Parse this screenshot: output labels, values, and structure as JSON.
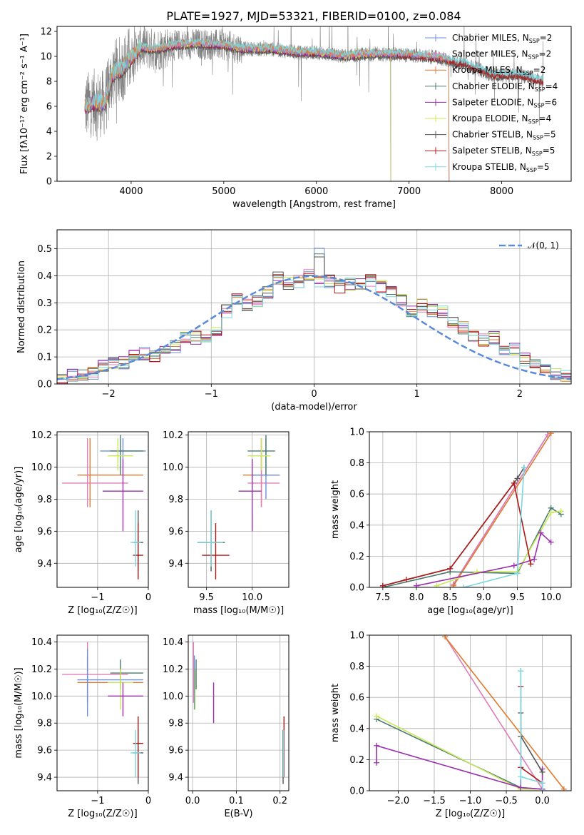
{
  "figure": {
    "title": "PLATE=1927, MJD=53321, FIBERID=0100, z=0.084",
    "colors": {
      "chabrier_miles": "#6a8fd8",
      "salpeter_miles": "#e07cb8",
      "kroupa_miles": "#e07a2e",
      "chabrier_elodie": "#4a7a6e",
      "salpeter_elodie": "#9b2fae",
      "kroupa_elodie": "#c8e85a",
      "chabrier_stelib": "#555555",
      "salpeter_stelib": "#b01818",
      "kroupa_stelib": "#7ad8e0",
      "data": "#808080",
      "normal": "#5b8bd8"
    }
  },
  "chart_data": [
    {
      "id": "spectrum",
      "type": "line",
      "xlabel": "wavelength [Angstrom, rest frame]",
      "ylabel": "Flux [fλ10⁻¹⁷ erg cm⁻² s⁻¹ A⁻¹]",
      "xlim": [
        3200,
        8750
      ],
      "ylim": [
        0,
        12.4
      ],
      "xticks": [
        4000,
        5000,
        6000,
        7000,
        8000
      ],
      "yticks": [
        0,
        2,
        4,
        6,
        8,
        10,
        12
      ],
      "continuum": {
        "x": [
          3500,
          3600,
          3700,
          3750,
          3800,
          3900,
          4000,
          4100,
          4200,
          4300,
          4400,
          4500,
          4700,
          5000,
          5200,
          5500,
          5800,
          6000,
          6300,
          6600,
          7000,
          7300,
          7600,
          7900,
          8200,
          8450
        ],
        "y": [
          6.0,
          6.3,
          6.2,
          7.0,
          8.6,
          9.0,
          9.9,
          10.7,
          10.6,
          10.6,
          10.8,
          10.9,
          11.0,
          10.9,
          10.6,
          10.6,
          10.3,
          10.3,
          10.0,
          10.2,
          10.1,
          9.9,
          9.4,
          8.5,
          8.5,
          8.0
        ]
      },
      "legend_position": "right",
      "legend": [
        {
          "label": "Chabrier MILES, N",
          "sub": "SSP",
          "n": "=2",
          "color": "chabrier_miles"
        },
        {
          "label": "Salpeter MILES, N",
          "sub": "SSP",
          "n": "=2",
          "color": "salpeter_miles"
        },
        {
          "label": "Kroupa MILES, N",
          "sub": "SSP",
          "n": "=2",
          "color": "kroupa_miles"
        },
        {
          "label": "Chabrier ELODIE, N",
          "sub": "SSP",
          "n": "=4",
          "color": "chabrier_elodie"
        },
        {
          "label": "Salpeter ELODIE, N",
          "sub": "SSP",
          "n": "=6",
          "color": "salpeter_elodie"
        },
        {
          "label": "Kroupa ELODIE, N",
          "sub": "SSP",
          "n": "=4",
          "color": "kroupa_elodie"
        },
        {
          "label": "Chabrier STELIB, N",
          "sub": "SSP",
          "n": "=5",
          "color": "chabrier_stelib"
        },
        {
          "label": "Salpeter STELIB, N",
          "sub": "SSP",
          "n": "=5",
          "color": "salpeter_stelib"
        },
        {
          "label": "Kroupa STELIB, N",
          "sub": "SSP",
          "n": "=5",
          "color": "kroupa_stelib"
        }
      ]
    },
    {
      "id": "residuals",
      "type": "line",
      "xlabel": "(data-model)/error",
      "ylabel": "Normed distribution",
      "xlim": [
        -2.5,
        2.5
      ],
      "ylim": [
        0,
        0.57
      ],
      "xticks": [
        -2,
        -1,
        0,
        1,
        2
      ],
      "yticks": [
        0.0,
        0.1,
        0.2,
        0.3,
        0.4,
        0.5
      ],
      "legend": "𝒩(0, 1)",
      "bins": [
        -2.5,
        -2.4,
        -2.3,
        -2.2,
        -2.1,
        -2.0,
        -1.9,
        -1.8,
        -1.7,
        -1.6,
        -1.5,
        -1.4,
        -1.3,
        -1.2,
        -1.1,
        -1.0,
        -0.9,
        -0.8,
        -0.7,
        -0.6,
        -0.5,
        -0.4,
        -0.3,
        -0.2,
        -0.1,
        0.0,
        0.1,
        0.2,
        0.3,
        0.4,
        0.5,
        0.6,
        0.7,
        0.8,
        0.9,
        1.0,
        1.1,
        1.2,
        1.3,
        1.4,
        1.5,
        1.6,
        1.7,
        1.8,
        1.9,
        2.0,
        2.1,
        2.2,
        2.3,
        2.4,
        2.5
      ],
      "base": [
        0.02,
        0.03,
        0.03,
        0.04,
        0.07,
        0.08,
        0.08,
        0.1,
        0.11,
        0.1,
        0.13,
        0.14,
        0.17,
        0.17,
        0.18,
        0.2,
        0.27,
        0.31,
        0.29,
        0.31,
        0.34,
        0.39,
        0.37,
        0.38,
        0.4,
        0.38,
        0.38,
        0.36,
        0.37,
        0.37,
        0.38,
        0.36,
        0.34,
        0.31,
        0.27,
        0.29,
        0.27,
        0.27,
        0.23,
        0.21,
        0.18,
        0.16,
        0.17,
        0.12,
        0.13,
        0.09,
        0.07,
        0.05,
        0.04,
        0.03
      ]
    },
    {
      "id": "age_vs_Z",
      "type": "scatter",
      "xlabel": "Z [log₁₀(Z/Z☉)]",
      "ylabel": "age  [log₁₀(age/yr)]",
      "xlim": [
        -1.8,
        0.0
      ],
      "ylim": [
        9.25,
        10.22
      ],
      "xticks": [
        -1,
        0
      ],
      "yticks": [
        9.4,
        9.6,
        9.8,
        10.0,
        10.2
      ],
      "points": [
        {
          "c": "kroupa_miles",
          "x": -1.15,
          "y": 9.95,
          "xe": [
            -1.4,
            -0.1
          ],
          "ye": [
            9.75,
            10.18
          ]
        },
        {
          "c": "salpeter_miles",
          "x": -1.2,
          "y": 9.9,
          "xe": [
            -1.7,
            -0.4
          ],
          "ye": [
            9.75,
            10.18
          ]
        },
        {
          "c": "chabrier_miles",
          "x": -0.5,
          "y": 10.1,
          "xe": [
            -0.95,
            -0.05
          ],
          "ye": [
            10.05,
            10.18
          ]
        },
        {
          "c": "chabrier_elodie",
          "x": -0.55,
          "y": 10.1,
          "xe": [
            -0.75,
            -0.1
          ],
          "ye": [
            9.95,
            10.2
          ]
        },
        {
          "c": "kroupa_elodie",
          "x": -0.6,
          "y": 10.07,
          "xe": [
            -0.8,
            -0.3
          ],
          "ye": [
            9.98,
            10.18
          ]
        },
        {
          "c": "salpeter_elodie",
          "x": -0.5,
          "y": 9.85,
          "xe": [
            -0.9,
            -0.1
          ],
          "ye": [
            9.6,
            10.05
          ]
        },
        {
          "c": "chabrier_stelib",
          "x": -0.2,
          "y": 9.53,
          "xe": [
            -0.3,
            -0.1
          ],
          "ye": [
            9.35,
            9.73
          ]
        },
        {
          "c": "salpeter_stelib",
          "x": -0.2,
          "y": 9.45,
          "xe": [
            -0.3,
            -0.1
          ],
          "ye": [
            9.3,
            9.65
          ]
        },
        {
          "c": "kroupa_stelib",
          "x": -0.25,
          "y": 9.53,
          "xe": [
            -0.35,
            -0.15
          ],
          "ye": [
            9.38,
            9.73
          ]
        }
      ]
    },
    {
      "id": "age_vs_mass",
      "type": "scatter",
      "xlabel": "mass [log₁₀(M/M☉)]",
      "ylabel": "",
      "xlim": [
        9.3,
        10.4
      ],
      "ylim": [
        9.25,
        10.22
      ],
      "xticks": [
        9.5,
        10.0
      ],
      "yticks": [
        9.4,
        9.6,
        9.8,
        10.0,
        10.2
      ],
      "points": [
        {
          "c": "kroupa_miles",
          "x": 10.1,
          "y": 9.95,
          "xe": [
            9.9,
            10.3
          ],
          "ye": [
            9.75,
            10.18
          ]
        },
        {
          "c": "salpeter_miles",
          "x": 10.1,
          "y": 9.9,
          "xe": [
            9.95,
            10.3
          ],
          "ye": [
            9.75,
            10.18
          ]
        },
        {
          "c": "chabrier_miles",
          "x": 10.15,
          "y": 9.95,
          "xe": [
            10.0,
            10.3
          ],
          "ye": [
            9.8,
            10.18
          ]
        },
        {
          "c": "chabrier_elodie",
          "x": 10.15,
          "y": 10.1,
          "xe": [
            9.95,
            10.25
          ],
          "ye": [
            9.95,
            10.2
          ]
        },
        {
          "c": "kroupa_elodie",
          "x": 10.1,
          "y": 10.07,
          "xe": [
            9.95,
            10.2
          ],
          "ye": [
            9.98,
            10.18
          ]
        },
        {
          "c": "salpeter_elodie",
          "x": 10.0,
          "y": 9.85,
          "xe": [
            9.85,
            10.1
          ],
          "ye": [
            9.6,
            10.05
          ]
        },
        {
          "c": "chabrier_stelib",
          "x": 9.55,
          "y": 9.53,
          "xe": [
            9.4,
            9.7
          ],
          "ye": [
            9.35,
            9.73
          ]
        },
        {
          "c": "salpeter_stelib",
          "x": 9.6,
          "y": 9.45,
          "xe": [
            9.45,
            9.75
          ],
          "ye": [
            9.3,
            9.65
          ]
        },
        {
          "c": "kroupa_stelib",
          "x": 9.55,
          "y": 9.53,
          "xe": [
            9.4,
            9.68
          ],
          "ye": [
            9.38,
            9.73
          ]
        }
      ]
    },
    {
      "id": "weight_vs_age",
      "type": "line",
      "xlabel": "age  [log₁₀(age/yr)]",
      "ylabel": "mass weight",
      "xlim": [
        7.3,
        10.3
      ],
      "ylim": [
        0,
        1
      ],
      "xticks": [
        7.5,
        8.0,
        8.5,
        9.0,
        9.5,
        10.0
      ],
      "yticks": [
        0.0,
        0.2,
        0.4,
        0.6,
        0.8,
        1.0
      ],
      "series": [
        {
          "c": "chabrier_miles",
          "x": [
            8.55,
            9.95
          ],
          "y": [
            0.02,
            0.98
          ]
        },
        {
          "c": "salpeter_miles",
          "x": [
            8.55,
            9.95
          ],
          "y": [
            0.02,
            0.98
          ]
        },
        {
          "c": "kroupa_miles",
          "x": [
            8.55,
            10.0
          ],
          "y": [
            0.01,
            0.99
          ]
        },
        {
          "c": "chabrier_elodie",
          "x": [
            7.5,
            8.5,
            9.5,
            10.0,
            10.15
          ],
          "y": [
            0.0,
            0.1,
            0.09,
            0.51,
            0.47
          ]
        },
        {
          "c": "kroupa_elodie",
          "x": [
            8.3,
            8.9,
            9.5,
            10.0,
            10.15
          ],
          "y": [
            0.01,
            0.1,
            0.1,
            0.48,
            0.49
          ]
        },
        {
          "c": "salpeter_elodie",
          "x": [
            8.0,
            9.45,
            9.75,
            9.85,
            10.0
          ],
          "y": [
            0.01,
            0.14,
            0.18,
            0.35,
            0.29
          ]
        },
        {
          "c": "chabrier_stelib",
          "x": [
            7.5,
            8.5,
            9.5,
            9.6
          ],
          "y": [
            0.01,
            0.12,
            0.7,
            0.77
          ]
        },
        {
          "c": "salpeter_stelib",
          "x": [
            7.5,
            7.85,
            8.5,
            9.45,
            9.7
          ],
          "y": [
            0.01,
            0.05,
            0.12,
            0.67,
            0.15
          ]
        },
        {
          "c": "kroupa_stelib",
          "x": [
            8.7,
            9.5,
            9.6
          ],
          "y": [
            0.0,
            0.09,
            0.77
          ]
        }
      ]
    },
    {
      "id": "mass_vs_Z",
      "type": "scatter",
      "xlabel": "Z [log₁₀(Z/Z☉)]",
      "ylabel": "mass [log₁₀(M/M☉)]",
      "xlim": [
        -1.8,
        0.0
      ],
      "ylim": [
        9.3,
        10.45
      ],
      "xticks": [
        -1,
        0
      ],
      "yticks": [
        9.4,
        9.6,
        9.8,
        10.0,
        10.2,
        10.4
      ],
      "points": [
        {
          "c": "kroupa_miles",
          "x": -1.2,
          "y": 10.1,
          "xe": [
            -1.4,
            -0.1
          ],
          "ye": [
            9.95,
            10.3
          ]
        },
        {
          "c": "salpeter_miles",
          "x": -1.2,
          "y": 10.16,
          "xe": [
            -1.7,
            -0.4
          ],
          "ye": [
            9.95,
            10.4
          ]
        },
        {
          "c": "chabrier_miles",
          "x": -1.2,
          "y": 10.12,
          "xe": [
            -1.4,
            -0.1
          ],
          "ye": [
            9.85,
            10.35
          ]
        },
        {
          "c": "chabrier_elodie",
          "x": -0.55,
          "y": 10.17,
          "xe": [
            -0.75,
            -0.1
          ],
          "ye": [
            10.05,
            10.27
          ]
        },
        {
          "c": "kroupa_elodie",
          "x": -0.55,
          "y": 10.1,
          "xe": [
            -0.8,
            -0.3
          ],
          "ye": [
            9.9,
            10.2
          ]
        },
        {
          "c": "salpeter_elodie",
          "x": -0.5,
          "y": 10.0,
          "xe": [
            -0.8,
            -0.1
          ],
          "ye": [
            9.85,
            10.1
          ]
        },
        {
          "c": "chabrier_stelib",
          "x": -0.2,
          "y": 9.58,
          "xe": [
            -0.3,
            -0.1
          ],
          "ye": [
            9.35,
            9.75
          ]
        },
        {
          "c": "salpeter_stelib",
          "x": -0.2,
          "y": 9.65,
          "xe": [
            -0.3,
            -0.1
          ],
          "ye": [
            9.4,
            9.85
          ]
        },
        {
          "c": "kroupa_stelib",
          "x": -0.25,
          "y": 9.58,
          "xe": [
            -0.35,
            -0.15
          ],
          "ye": [
            9.4,
            9.75
          ]
        }
      ]
    },
    {
      "id": "mass_vs_EBV",
      "type": "scatter",
      "xlabel": "E(B-V)",
      "ylabel": "",
      "xlim": [
        -0.01,
        0.22
      ],
      "ylim": [
        9.3,
        10.45
      ],
      "xticks": [
        0.0,
        0.1,
        0.2
      ],
      "yticks": [
        9.4,
        9.6,
        9.8,
        10.0,
        10.2,
        10.4
      ],
      "points": [
        {
          "c": "salpeter_miles",
          "x": 0.002,
          "y": 10.16,
          "xe": [
            0.002,
            0.002
          ],
          "ye": [
            9.95,
            10.4
          ]
        },
        {
          "c": "chabrier_miles",
          "x": 0.004,
          "y": 10.12,
          "xe": [
            0.004,
            0.004
          ],
          "ye": [
            9.9,
            10.3
          ]
        },
        {
          "c": "kroupa_elodie",
          "x": 0.006,
          "y": 10.1,
          "xe": [
            0.006,
            0.006
          ],
          "ye": [
            9.9,
            10.2
          ]
        },
        {
          "c": "chabrier_elodie",
          "x": 0.008,
          "y": 10.17,
          "xe": [
            0.008,
            0.008
          ],
          "ye": [
            10.05,
            10.27
          ]
        },
        {
          "c": "salpeter_elodie",
          "x": 0.048,
          "y": 10.0,
          "xe": [
            0.048,
            0.048
          ],
          "ye": [
            9.8,
            10.1
          ]
        },
        {
          "c": "chabrier_stelib",
          "x": 0.207,
          "y": 9.58,
          "xe": [
            0.207,
            0.207
          ],
          "ye": [
            9.35,
            9.75
          ]
        },
        {
          "c": "salpeter_stelib",
          "x": 0.209,
          "y": 9.65,
          "xe": [
            0.209,
            0.209
          ],
          "ye": [
            9.4,
            9.85
          ]
        },
        {
          "c": "kroupa_stelib",
          "x": 0.208,
          "y": 9.58,
          "xe": [
            0.208,
            0.208
          ],
          "ye": [
            9.4,
            9.75
          ]
        }
      ]
    },
    {
      "id": "weight_vs_Z",
      "type": "line",
      "xlabel": "Z [log₁₀(Z/Z☉)]",
      "ylabel": "mass weight",
      "xlim": [
        -2.4,
        0.4
      ],
      "ylim": [
        0,
        1
      ],
      "xticks": [
        -2.0,
        -1.5,
        -1.0,
        -0.5,
        0.0
      ],
      "yticks": [
        0.0,
        0.2,
        0.4,
        0.6,
        0.8,
        1.0
      ],
      "series": [
        {
          "c": "salpeter_miles",
          "x": [
            -1.35,
            0.0
          ],
          "y": [
            0.99,
            0.01
          ]
        },
        {
          "c": "kroupa_miles",
          "x": [
            -1.35,
            0.3
          ],
          "y": [
            0.99,
            0.01
          ]
        },
        {
          "c": "chabrier_miles",
          "x": [
            -0.3,
            -0.3
          ],
          "y": [
            0.02,
            0.77
          ]
        },
        {
          "c": "chabrier_elodie",
          "x": [
            -2.3,
            -0.3,
            0.0
          ],
          "y": [
            0.46,
            0.02,
            0.01
          ]
        },
        {
          "c": "kroupa_elodie",
          "x": [
            -2.3,
            -0.3,
            0.0
          ],
          "y": [
            0.48,
            0.01,
            0.01
          ]
        },
        {
          "c": "salpeter_elodie",
          "x": [
            -2.3,
            -2.3,
            -0.3,
            0.0,
            0.0
          ],
          "y": [
            0.18,
            0.29,
            0.02,
            0.01,
            0.14
          ]
        },
        {
          "c": "chabrier_stelib",
          "x": [
            -0.3,
            -0.3,
            0.0
          ],
          "y": [
            0.5,
            0.35,
            0.12
          ]
        },
        {
          "c": "salpeter_stelib",
          "x": [
            -0.3,
            -0.3,
            0.0
          ],
          "y": [
            0.67,
            0.15,
            0.05
          ]
        },
        {
          "c": "kroupa_stelib",
          "x": [
            -0.3,
            -0.3,
            0.0,
            0.0
          ],
          "y": [
            0.77,
            0.09,
            0.05,
            0.0
          ]
        }
      ]
    }
  ]
}
